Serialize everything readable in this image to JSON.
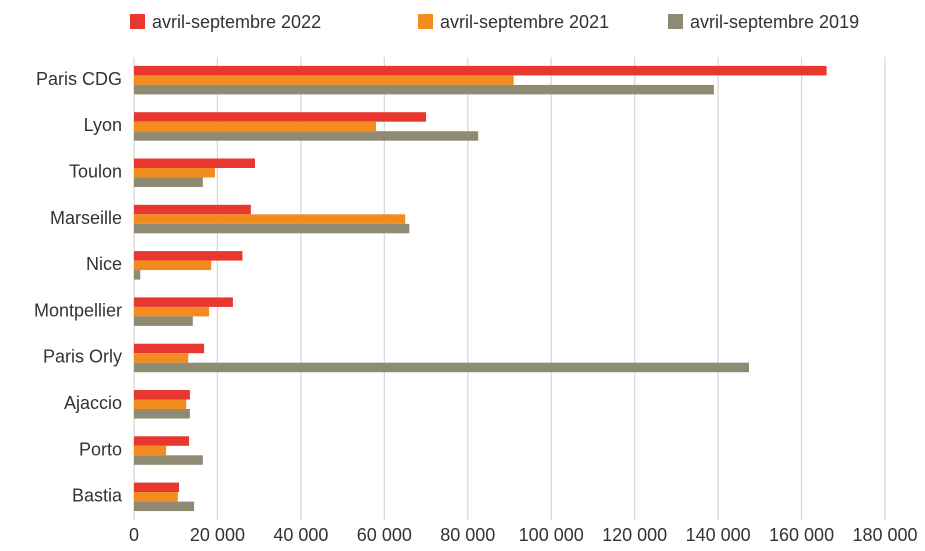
{
  "chart_data": {
    "type": "hbar",
    "categories": [
      "Paris CDG",
      "Lyon",
      "Toulon",
      "Marseille",
      "Nice",
      "Montpellier",
      "Paris Orly",
      "Ajaccio",
      "Porto",
      "Bastia"
    ],
    "series": [
      {
        "name": "avril-septembre 2022",
        "color": "#e8372f",
        "values": [
          166000,
          70000,
          29000,
          28000,
          26000,
          23700,
          16800,
          13400,
          13200,
          10800
        ]
      },
      {
        "name": "avril-septembre 2021",
        "color": "#f28c1e",
        "values": [
          91000,
          58000,
          19400,
          65000,
          18500,
          18000,
          13000,
          12500,
          7700,
          10500
        ]
      },
      {
        "name": "avril-septembre 2019",
        "color": "#8f8b73",
        "values": [
          139000,
          82500,
          16500,
          66000,
          1500,
          14100,
          147400,
          13400,
          16500,
          14400
        ]
      }
    ],
    "xlim": [
      0,
      180000
    ],
    "xticks": [
      0,
      {
        "value": 20000,
        "label": "20 000"
      },
      {
        "value": 40000,
        "label": "40 000"
      },
      {
        "value": 60000,
        "label": "60 000"
      },
      {
        "value": 80000,
        "label": "80 000"
      },
      {
        "value": 100000,
        "label": "100 000"
      },
      {
        "value": 120000,
        "label": "120 000"
      },
      {
        "value": 140000,
        "label": "140 000"
      },
      {
        "value": 160000,
        "label": "160 000"
      },
      {
        "value": 180000,
        "label": "180 000"
      }
    ],
    "grid": true,
    "legend": "top"
  }
}
